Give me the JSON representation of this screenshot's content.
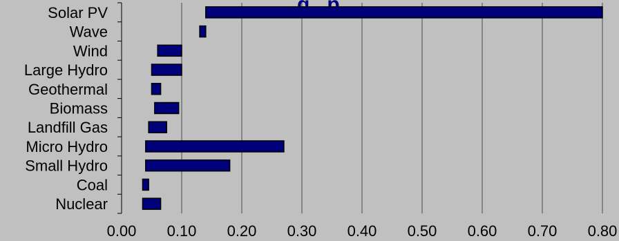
{
  "chart_data": {
    "type": "bar",
    "orientation": "horizontal",
    "title_fragment": "g   p",
    "categories": [
      "Solar PV",
      "Wave",
      "Wind",
      "Large Hydro",
      "Geothermal",
      "Biomass",
      "Landfill Gas",
      "Micro Hydro",
      "Small Hydro",
      "Coal",
      "Nuclear"
    ],
    "series": [
      {
        "ranges": [
          [
            0.14,
            0.8
          ],
          [
            0.13,
            0.14
          ],
          [
            0.06,
            0.1
          ],
          [
            0.05,
            0.1
          ],
          [
            0.05,
            0.065
          ],
          [
            0.055,
            0.095
          ],
          [
            0.045,
            0.075
          ],
          [
            0.04,
            0.27
          ],
          [
            0.04,
            0.18
          ],
          [
            0.035,
            0.045
          ],
          [
            0.035,
            0.065
          ]
        ]
      }
    ],
    "x_ticks": [
      "0.00",
      "0.10",
      "0.20",
      "0.30",
      "0.40",
      "0.50",
      "0.60",
      "0.70",
      "0.80"
    ],
    "xlim": [
      0,
      0.8
    ],
    "grid": "vertical",
    "bar_color": "#00007a",
    "bar_edge_color": "#000000",
    "background": "#c0c0c0"
  }
}
